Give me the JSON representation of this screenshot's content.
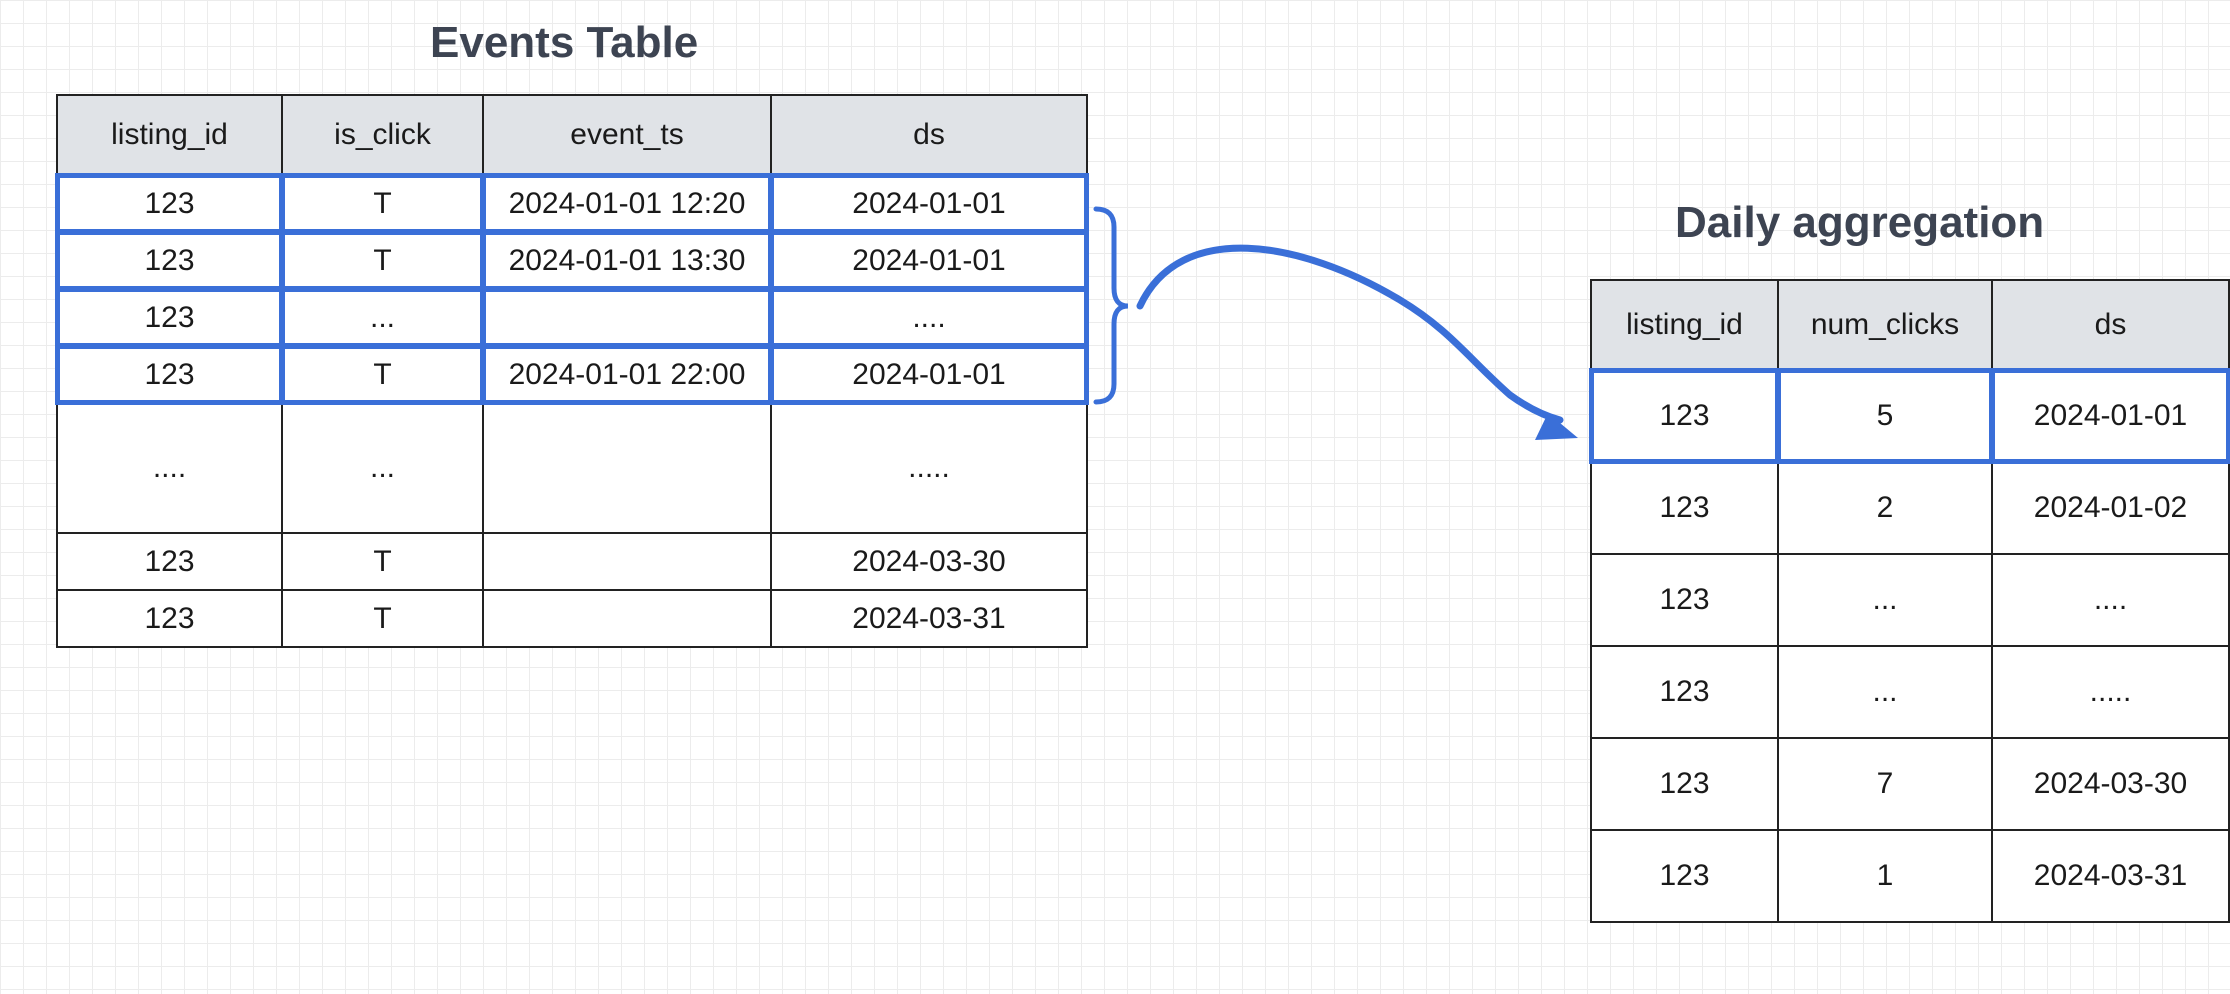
{
  "events_table": {
    "title": "Events Table",
    "columns": [
      "listing_id",
      "is_click",
      "event_ts",
      "ds"
    ],
    "rows": [
      [
        "123",
        "T",
        "2024-01-01 12:20",
        "2024-01-01"
      ],
      [
        "123",
        "T",
        "2024-01-01 13:30",
        "2024-01-01"
      ],
      [
        "123",
        "...",
        "",
        "...."
      ],
      [
        "123",
        "T",
        "2024-01-01 22:00",
        "2024-01-01"
      ],
      [
        "....",
        "...",
        "",
        "....."
      ],
      [
        "123",
        "T",
        "",
        "2024-03-30"
      ],
      [
        "123",
        "T",
        "",
        "2024-03-31"
      ]
    ]
  },
  "daily_aggregation": {
    "title": "Daily aggregation",
    "columns": [
      "listing_id",
      "num_clicks",
      "ds"
    ],
    "rows": [
      [
        "123",
        "5",
        "2024-01-01"
      ],
      [
        "123",
        "2",
        "2024-01-02"
      ],
      [
        "123",
        "...",
        "...."
      ],
      [
        "123",
        "...",
        "....."
      ],
      [
        "123",
        "7",
        "2024-03-30"
      ],
      [
        "123",
        "1",
        "2024-03-31"
      ]
    ]
  },
  "colors": {
    "highlight": "#3a6fd8",
    "header_fill": "#e0e3e7",
    "title_text": "#3d4452"
  }
}
